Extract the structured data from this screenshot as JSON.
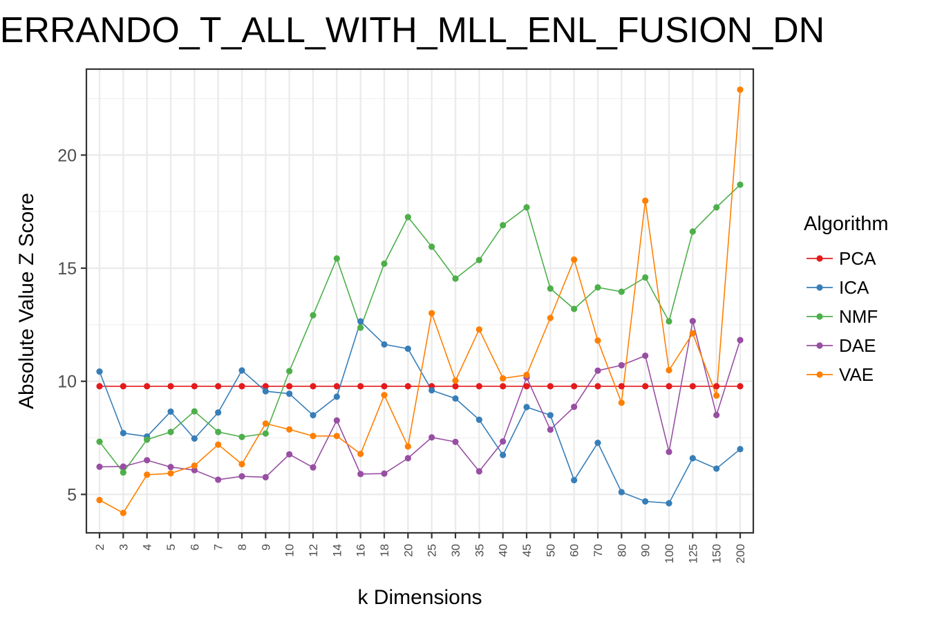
{
  "chart_data": {
    "type": "line",
    "title": "FERRANDO_T_ALL_WITH_MLL_ENL_FUSION_DN",
    "xlabel": "k Dimensions",
    "ylabel": "Absolute Value Z Score",
    "categories": [
      "2",
      "3",
      "4",
      "5",
      "6",
      "7",
      "8",
      "9",
      "10",
      "12",
      "14",
      "16",
      "18",
      "20",
      "25",
      "30",
      "35",
      "40",
      "45",
      "50",
      "60",
      "70",
      "80",
      "90",
      "100",
      "125",
      "150",
      "200"
    ],
    "ylim": [
      3.3,
      23.8
    ],
    "yticks": [
      5,
      10,
      15,
      20
    ],
    "grid": true,
    "legend": {
      "title": "Algorithm",
      "position": "right"
    },
    "series": [
      {
        "name": "PCA",
        "color": "#E41A1C",
        "values": [
          9.78,
          9.78,
          9.78,
          9.78,
          9.78,
          9.78,
          9.78,
          9.78,
          9.78,
          9.78,
          9.78,
          9.78,
          9.78,
          9.78,
          9.78,
          9.78,
          9.78,
          9.78,
          9.78,
          9.78,
          9.78,
          9.78,
          9.78,
          9.78,
          9.78,
          9.78,
          9.78,
          9.78
        ]
      },
      {
        "name": "ICA",
        "color": "#377EB8",
        "values": [
          10.43,
          7.71,
          7.56,
          8.66,
          7.47,
          8.62,
          10.48,
          9.56,
          9.45,
          8.5,
          9.32,
          12.65,
          11.63,
          11.44,
          9.6,
          9.24,
          8.3,
          6.74,
          8.86,
          8.5,
          5.63,
          7.28,
          5.1,
          4.69,
          4.61,
          6.6,
          6.14,
          7.0
        ]
      },
      {
        "name": "NMF",
        "color": "#4DAF4A",
        "values": [
          7.33,
          5.97,
          7.42,
          7.76,
          8.67,
          7.76,
          7.54,
          7.69,
          10.45,
          12.92,
          15.43,
          12.37,
          15.2,
          17.26,
          15.95,
          14.54,
          15.36,
          16.9,
          17.69,
          14.1,
          13.2,
          14.15,
          13.96,
          14.59,
          12.65,
          16.62,
          17.69,
          18.69
        ]
      },
      {
        "name": "DAE",
        "color": "#984EA3",
        "values": [
          6.22,
          6.23,
          6.51,
          6.21,
          6.07,
          5.65,
          5.8,
          5.76,
          6.77,
          6.19,
          8.27,
          5.9,
          5.92,
          6.6,
          7.52,
          7.32,
          6.02,
          7.34,
          10.17,
          7.86,
          8.87,
          10.47,
          10.71,
          11.13,
          6.88,
          12.66,
          8.51,
          11.82
        ]
      },
      {
        "name": "VAE",
        "color": "#FF7F00",
        "values": [
          4.75,
          4.18,
          5.87,
          5.93,
          6.27,
          7.2,
          6.34,
          8.13,
          7.87,
          7.58,
          7.58,
          6.79,
          9.39,
          7.12,
          13.01,
          10.03,
          12.29,
          10.13,
          10.28,
          12.8,
          15.38,
          11.8,
          9.05,
          17.98,
          10.49,
          12.12,
          9.37,
          22.89
        ]
      }
    ]
  }
}
